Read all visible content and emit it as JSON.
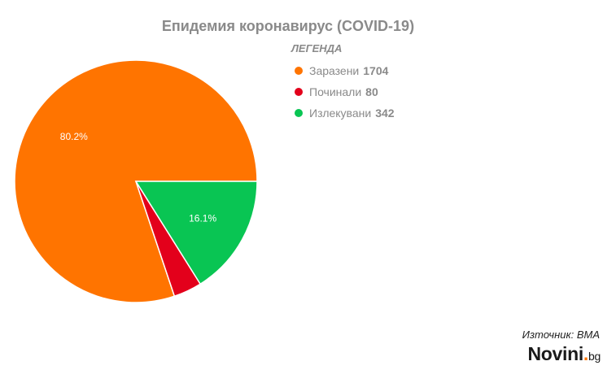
{
  "chart_data": {
    "type": "pie",
    "title": "Епидемия коронавирус (COVID-19)",
    "legend_title": "ЛЕГЕНДА",
    "legend_position": "right",
    "slices": [
      {
        "label": "Заразени",
        "value": 1704,
        "percent_label": "80.2%",
        "color": "#ff7400"
      },
      {
        "label": "Починали",
        "value": 80,
        "percent_label": "",
        "color": "#e3001b"
      },
      {
        "label": "Излекувани",
        "value": 342,
        "percent_label": "16.1%",
        "color": "#09c553"
      }
    ]
  },
  "source": "Източник: ВМА",
  "brand": {
    "name": "Novini",
    "tld": "bg"
  }
}
